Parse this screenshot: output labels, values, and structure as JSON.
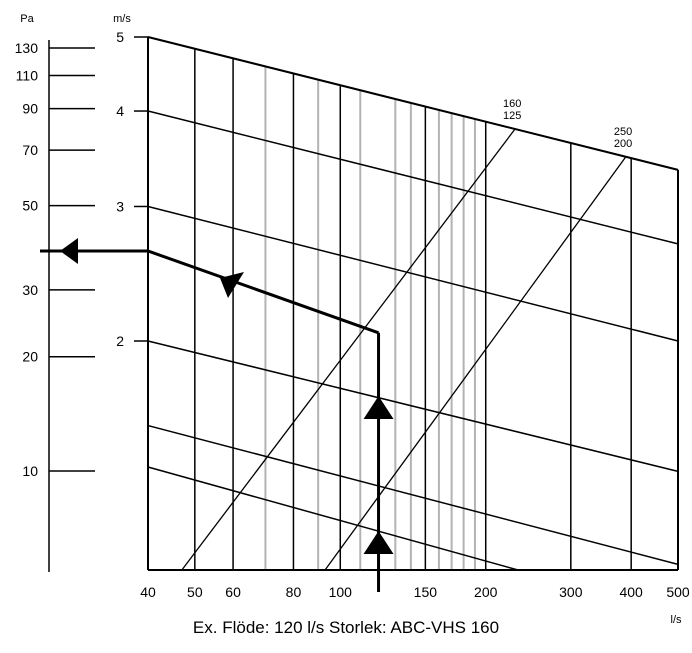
{
  "chart_data": {
    "type": "line",
    "title": "",
    "caption": "Ex. Flöde: 120 l/s Storlek: ABC-VHS 160",
    "x_axis": {
      "unit": "l/s",
      "scale": "log",
      "range": [
        40,
        500
      ],
      "ticks": [
        40,
        50,
        60,
        80,
        100,
        150,
        200,
        300,
        400,
        500
      ],
      "minor_gridlines": [
        70,
        90,
        110,
        130,
        140,
        160,
        170,
        180,
        190
      ]
    },
    "velocity_axis": {
      "unit": "m/s",
      "scale": "log",
      "ticks": [
        5,
        4,
        3,
        2
      ]
    },
    "pressure_axis": {
      "unit": "Pa",
      "scale": "log",
      "ticks": [
        130,
        110,
        90,
        70,
        50,
        30,
        20,
        10
      ]
    },
    "pressure_lines": {
      "description_values_at_40": [
        5,
        4,
        3,
        2,
        1.55
      ],
      "values_at_500": [
        3.35,
        2.68,
        2.0,
        1.35,
        1.02
      ]
    },
    "duct_size_lines": [
      {
        "label_top": "160",
        "label_bottom": "125",
        "points": [
          [
            47,
            0.88
          ],
          [
            230,
            3.48
          ]
        ]
      },
      {
        "label_top": "250",
        "label_bottom": "200",
        "points": [
          [
            93,
            0.88
          ],
          [
            390,
            3.13
          ]
        ]
      }
    ],
    "example": {
      "flow": 120,
      "velocity": 2.05,
      "pressure": 37
    }
  }
}
